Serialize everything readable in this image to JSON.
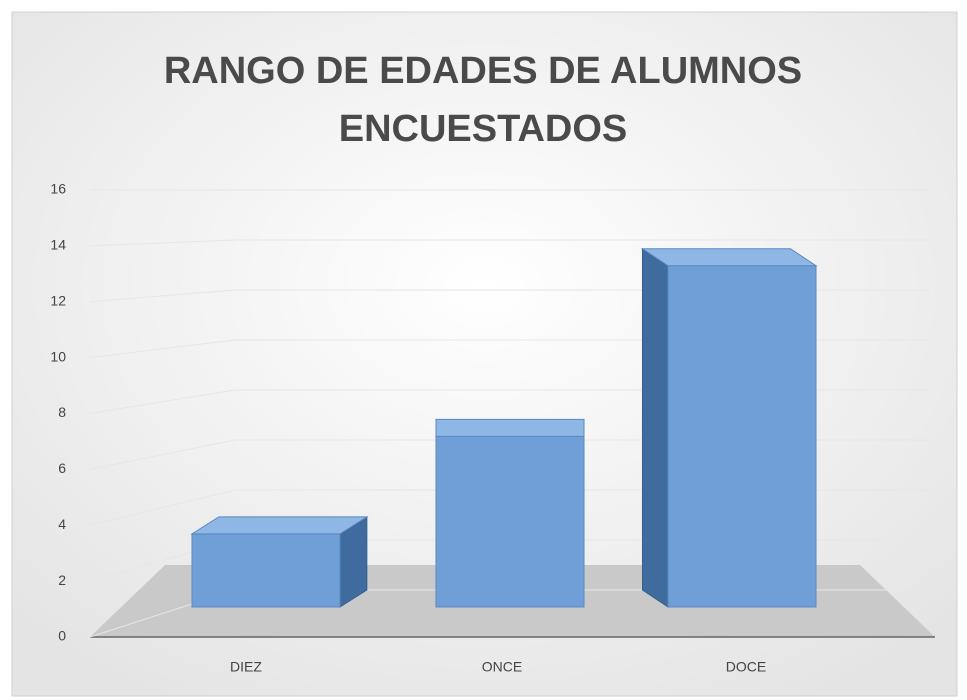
{
  "chart_data": {
    "type": "bar3d",
    "title": "RANGO DE EDADES DE ALUMNOS ENCUESTADOS",
    "categories": [
      "DIEZ",
      "ONCE",
      "DOCE"
    ],
    "values": [
      3,
      7,
      14
    ],
    "color": "#6f9fd6",
    "ylim": [
      0,
      16
    ],
    "yticks": [
      0,
      2,
      4,
      6,
      8,
      10,
      12,
      14,
      16
    ],
    "grid": true
  }
}
